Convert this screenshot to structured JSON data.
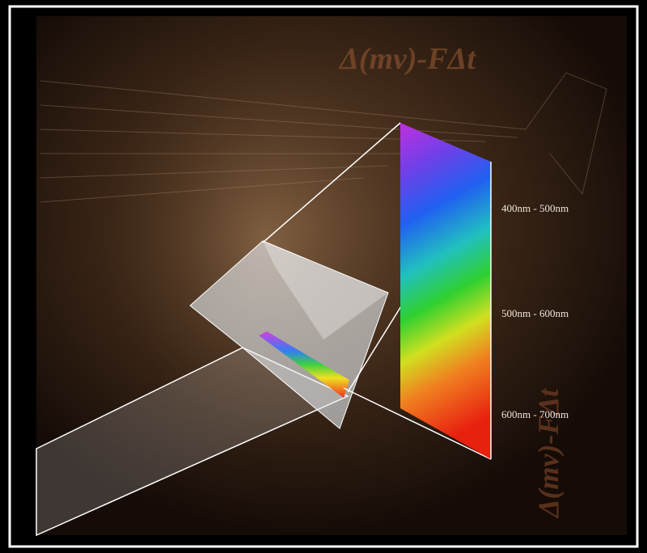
{
  "formula": "Δ(mv)-FΔt",
  "side_formula": "Δ(mv)-FΔt",
  "spectrum_labels": [
    "400nm - 500nm",
    "500nm - 600nm",
    "600nm - 700nm"
  ]
}
